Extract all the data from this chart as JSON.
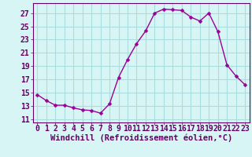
{
  "x": [
    0,
    1,
    2,
    3,
    4,
    5,
    6,
    7,
    8,
    9,
    10,
    11,
    12,
    13,
    14,
    15,
    16,
    17,
    18,
    19,
    20,
    21,
    22,
    23
  ],
  "y": [
    14.7,
    13.8,
    13.1,
    13.1,
    12.7,
    12.4,
    12.3,
    11.9,
    13.3,
    17.3,
    20.0,
    22.4,
    24.3,
    27.0,
    27.6,
    27.5,
    27.4,
    26.4,
    25.8,
    27.0,
    24.2,
    19.2,
    17.5,
    16.2
  ],
  "line_color": "#990099",
  "marker_color": "#990099",
  "bg_color": "#d8f5f5",
  "grid_color": "#aadddd",
  "xlabel": "Windchill (Refroidissement éolien,°C)",
  "xlim": [
    -0.5,
    23.5
  ],
  "ylim": [
    10.5,
    28.5
  ],
  "yticks": [
    11,
    13,
    15,
    17,
    19,
    21,
    23,
    25,
    27
  ],
  "xticks": [
    0,
    1,
    2,
    3,
    4,
    5,
    6,
    7,
    8,
    9,
    10,
    11,
    12,
    13,
    14,
    15,
    16,
    17,
    18,
    19,
    20,
    21,
    22,
    23
  ],
  "axis_color": "#660066",
  "tick_color": "#660066",
  "label_color": "#660066",
  "font_size_xlabel": 7.5,
  "font_size_ticks": 7,
  "line_width": 1.0,
  "marker_size": 2.5
}
